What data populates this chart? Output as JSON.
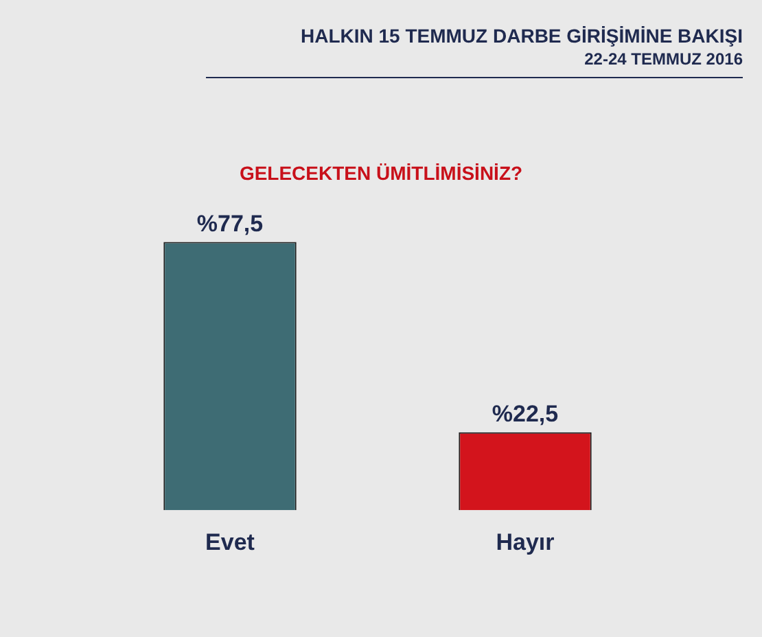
{
  "chart_data": {
    "type": "bar",
    "title": "HALKIN 15 TEMMUZ DARBE GİRİŞİMİNE BAKIŞI",
    "subtitle": "22-24 TEMMUZ 2016",
    "annotations": [
      "GELECEKTEN ÜMİTLİMİSİNİZ?"
    ],
    "categories": [
      "Evet",
      "Hayır"
    ],
    "values": [
      77.5,
      22.5
    ],
    "value_labels": [
      "%77,5",
      "%22,5"
    ],
    "colors": [
      "#3e6c74",
      "#d3141c"
    ],
    "tick_labels": "x",
    "grid": false,
    "legend": false
  }
}
